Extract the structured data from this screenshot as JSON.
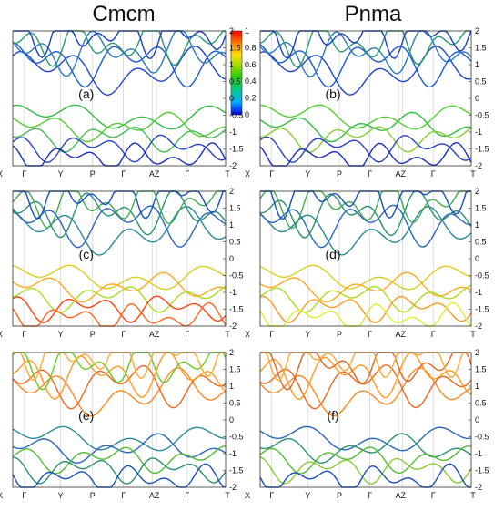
{
  "columns": [
    "Cmcm",
    "Pnma"
  ],
  "colorbar": {
    "ticks": [
      "1",
      "0.8",
      "0.6",
      "0.4",
      "0.2",
      "0"
    ],
    "stops": [
      "#0000ff",
      "#00ccff",
      "#00cc66",
      "#33cc00",
      "#ccee00",
      "#ffcc00",
      "#ff6600",
      "#ff0000"
    ]
  },
  "chart_data": [
    {
      "type": "line",
      "panel": "(a)",
      "structure": "Cmcm",
      "ylim": [
        -2,
        2
      ],
      "yticks": [
        "2",
        "1.5",
        "1",
        "0.5",
        "0",
        "-0.5",
        "-1",
        "-1.5",
        "-2"
      ],
      "xticks": [
        "X",
        "Γ",
        "Y",
        "P",
        "Γ",
        "AZ",
        "Γ",
        "T"
      ]
    },
    {
      "type": "line",
      "panel": "(b)",
      "structure": "Pnma",
      "ylim": [
        -2,
        2
      ],
      "yticks": [
        "2",
        "1.5",
        "1",
        "0.5",
        "0",
        "-0.5",
        "-1",
        "-1.5",
        "-2"
      ],
      "xticks": [
        "X",
        "Γ",
        "Y",
        "P",
        "Γ",
        "AZ",
        "Γ",
        "T"
      ]
    },
    {
      "type": "line",
      "panel": "(c)",
      "structure": "Cmcm",
      "ylim": [
        -2,
        2
      ],
      "yticks": [
        "2",
        "1.5",
        "1",
        "0.5",
        "0",
        "-0.5",
        "-1",
        "-1.5",
        "-2"
      ],
      "xticks": [
        "X",
        "Γ",
        "Y",
        "P",
        "Γ",
        "AZ",
        "Γ",
        "T"
      ]
    },
    {
      "type": "line",
      "panel": "(d)",
      "structure": "Pnma",
      "ylim": [
        -2,
        2
      ],
      "yticks": [
        "2",
        "1.5",
        "1",
        "0.5",
        "0",
        "-0.5",
        "-1",
        "-1.5",
        "-2"
      ],
      "xticks": [
        "X",
        "Γ",
        "Y",
        "P",
        "Γ",
        "AZ",
        "Γ",
        "T"
      ]
    },
    {
      "type": "line",
      "panel": "(e)",
      "structure": "Cmcm",
      "ylim": [
        -2,
        2
      ],
      "yticks": [
        "2",
        "1.5",
        "1",
        "0.5",
        "0",
        "-0.5",
        "-1",
        "-1.5",
        "-2"
      ],
      "xticks": [
        "X",
        "Γ",
        "Y",
        "P",
        "Γ",
        "AZ",
        "Γ",
        "T"
      ]
    },
    {
      "type": "line",
      "panel": "(f)",
      "structure": "Pnma",
      "ylim": [
        -2,
        2
      ],
      "yticks": [
        "2",
        "1.5",
        "1",
        "0.5",
        "0",
        "-0.5",
        "-1",
        "-1.5",
        "-2"
      ],
      "xticks": [
        "X",
        "Γ",
        "Y",
        "P",
        "Γ",
        "AZ",
        "Γ",
        "T"
      ]
    }
  ]
}
